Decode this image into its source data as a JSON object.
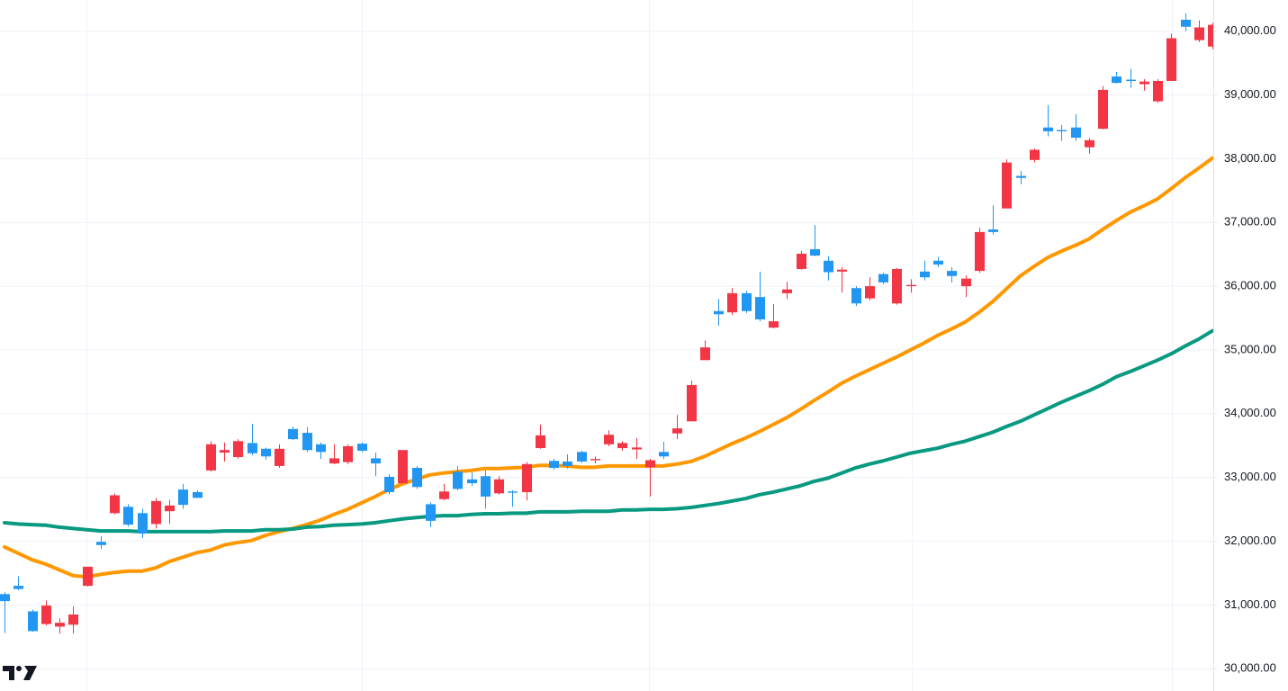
{
  "chart_data": {
    "type": "candlestick",
    "up_color": "#f23645",
    "down_color": "#2196f3",
    "ylim": [
      29650,
      40490
    ],
    "yticks": [
      {
        "value": 30000,
        "label": "30,000.00"
      },
      {
        "value": 31000,
        "label": "31,000.00"
      },
      {
        "value": 32000,
        "label": "32,000.00"
      },
      {
        "value": 33000,
        "label": "33,000.00"
      },
      {
        "value": 34000,
        "label": "34,000.00"
      },
      {
        "value": 35000,
        "label": "35,000.00"
      },
      {
        "value": 36000,
        "label": "36,000.00"
      },
      {
        "value": 37000,
        "label": "37,000.00"
      },
      {
        "value": 38000,
        "label": "38,000.00"
      },
      {
        "value": 39000,
        "label": "39,000.00"
      },
      {
        "value": 40000,
        "label": "40,000.00"
      }
    ],
    "grid": true,
    "open": [
      31170,
      31300,
      30900,
      30700,
      30660,
      30690,
      31300,
      31990,
      32440,
      32540,
      32440,
      32270,
      32470,
      32810,
      32770,
      33110,
      33390,
      33320,
      33540,
      33450,
      33180,
      33760,
      33700,
      33520,
      33220,
      33240,
      33530,
      33300,
      33010,
      32910,
      33150,
      32580,
      32660,
      33090,
      32970,
      33020,
      32750,
      32780,
      32770,
      33460,
      33260,
      33250,
      33400,
      33270,
      33520,
      33460,
      33440,
      33160,
      33400,
      33690,
      33880,
      34840,
      35610,
      35590,
      35890,
      35830,
      35350,
      35890,
      36270,
      36580,
      36400,
      36230,
      35970,
      35810,
      36190,
      35730,
      36000,
      36230,
      36400,
      36240,
      36000,
      36240,
      36890,
      37220,
      37730,
      37980,
      38490,
      38450,
      38490,
      38180,
      38470,
      39290,
      39240,
      39170,
      38900,
      39220,
      40180,
      39860,
      39760
    ],
    "high": [
      31200,
      31450,
      30930,
      31070,
      30790,
      30980,
      31600,
      32080,
      32750,
      32580,
      32510,
      32680,
      32650,
      32900,
      32800,
      33570,
      33550,
      33600,
      33840,
      33470,
      33520,
      33800,
      33790,
      33550,
      33520,
      33520,
      33550,
      33390,
      33050,
      33430,
      33180,
      32610,
      32900,
      33180,
      33080,
      33110,
      33020,
      32800,
      33240,
      33830,
      33290,
      33360,
      33420,
      33330,
      33740,
      33570,
      33620,
      33290,
      33560,
      33980,
      34520,
      35150,
      35800,
      35970,
      35930,
      36230,
      35720,
      36070,
      36550,
      36960,
      36470,
      36300,
      36000,
      36140,
      36210,
      36290,
      36110,
      36400,
      36460,
      36300,
      36170,
      36920,
      37270,
      37990,
      37810,
      38160,
      38840,
      38530,
      38700,
      38320,
      39140,
      39360,
      39410,
      39250,
      39250,
      39960,
      40280,
      40170,
      40130
    ],
    "low": [
      30560,
      31230,
      30580,
      30680,
      30550,
      30550,
      31290,
      31880,
      32420,
      32230,
      32050,
      32200,
      32270,
      32510,
      32680,
      33090,
      33250,
      33290,
      33350,
      33280,
      33150,
      33590,
      33400,
      33290,
      33210,
      33210,
      33400,
      33020,
      32740,
      32900,
      32820,
      32220,
      32640,
      32800,
      32870,
      32510,
      32730,
      32540,
      32640,
      33450,
      33120,
      33140,
      33230,
      33220,
      33490,
      33420,
      33290,
      32700,
      33290,
      33600,
      33880,
      34840,
      35380,
      35550,
      35580,
      35450,
      35340,
      35800,
      36260,
      36470,
      36090,
      35900,
      35690,
      35780,
      36030,
      35710,
      35900,
      36090,
      36300,
      36060,
      35830,
      36210,
      36810,
      37220,
      37600,
      37940,
      38350,
      38280,
      38280,
      38080,
      38460,
      39180,
      39110,
      39070,
      38880,
      39220,
      40000,
      39830,
      39720
    ],
    "close": [
      31060,
      31250,
      30590,
      30990,
      30720,
      30850,
      31600,
      31940,
      32720,
      32260,
      32120,
      32630,
      32560,
      32570,
      32680,
      33520,
      33430,
      33570,
      33380,
      33330,
      33450,
      33600,
      33430,
      33400,
      33300,
      33490,
      33420,
      33220,
      32770,
      33430,
      32850,
      32320,
      32780,
      32820,
      32910,
      32700,
      32970,
      32760,
      33210,
      33660,
      33150,
      33180,
      33250,
      33290,
      33670,
      33540,
      33470,
      33270,
      33330,
      33770,
      34450,
      35040,
      35560,
      35890,
      35610,
      35480,
      35450,
      35950,
      36510,
      36480,
      36220,
      36260,
      35730,
      36000,
      36060,
      36270,
      36020,
      36140,
      36340,
      36160,
      36120,
      36850,
      36850,
      37940,
      37700,
      38140,
      38430,
      38430,
      38330,
      38290,
      39080,
      39190,
      39220,
      39210,
      39220,
      39890,
      40070,
      40060,
      40100
    ],
    "lines": [
      {
        "color": "#ff9800",
        "values": [
          31910,
          31810,
          31710,
          31640,
          31550,
          31460,
          31440,
          31480,
          31510,
          31530,
          31530,
          31580,
          31680,
          31750,
          31820,
          31860,
          31940,
          31980,
          32010,
          32090,
          32150,
          32200,
          32260,
          32330,
          32420,
          32500,
          32600,
          32700,
          32810,
          32900,
          32970,
          33040,
          33070,
          33090,
          33110,
          33140,
          33140,
          33150,
          33160,
          33190,
          33190,
          33180,
          33160,
          33160,
          33180,
          33180,
          33180,
          33180,
          33180,
          33210,
          33250,
          33330,
          33430,
          33530,
          33620,
          33720,
          33830,
          33940,
          34070,
          34210,
          34340,
          34480,
          34590,
          34690,
          34790,
          34890,
          35000,
          35110,
          35230,
          35330,
          35440,
          35590,
          35760,
          35960,
          36160,
          36310,
          36450,
          36550,
          36640,
          36740,
          36890,
          37030,
          37160,
          37260,
          37370,
          37530,
          37700,
          37850,
          38010
        ]
      },
      {
        "color": "#089981",
        "values": [
          32290,
          32270,
          32260,
          32250,
          32220,
          32200,
          32180,
          32160,
          32160,
          32160,
          32150,
          32150,
          32150,
          32150,
          32150,
          32150,
          32160,
          32160,
          32160,
          32180,
          32180,
          32190,
          32220,
          32230,
          32250,
          32260,
          32270,
          32290,
          32320,
          32350,
          32370,
          32390,
          32400,
          32400,
          32420,
          32430,
          32430,
          32440,
          32440,
          32460,
          32460,
          32460,
          32470,
          32470,
          32470,
          32490,
          32490,
          32500,
          32500,
          32510,
          32530,
          32560,
          32590,
          32630,
          32670,
          32730,
          32770,
          32820,
          32870,
          32940,
          32990,
          33070,
          33150,
          33210,
          33260,
          33320,
          33380,
          33420,
          33460,
          33520,
          33570,
          33640,
          33710,
          33800,
          33880,
          33980,
          34080,
          34180,
          34270,
          34360,
          34460,
          34580,
          34660,
          34750,
          34840,
          34940,
          35060,
          35170,
          35300
        ]
      }
    ]
  }
}
